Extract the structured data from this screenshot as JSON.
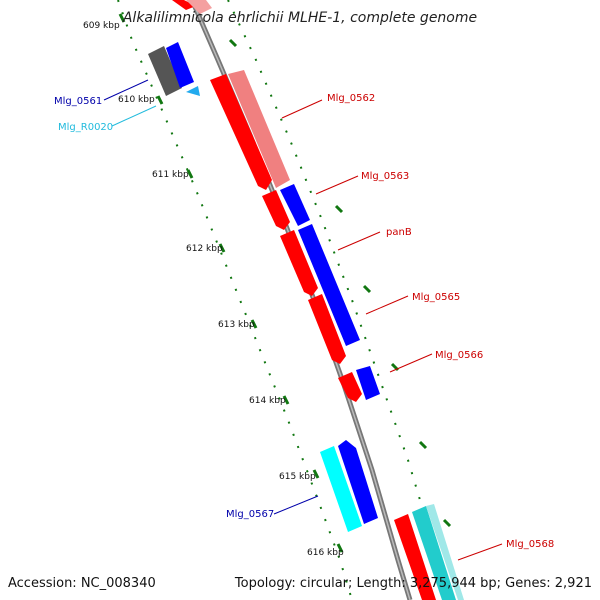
{
  "title": "Alkalilimnicola ehrlichii MLHE-1, complete genome",
  "footer": {
    "accession": "Accession: NC_008340",
    "topology": "Topology: circular; Length: 3,275,944 bp; Genes: 2,921"
  },
  "colors": {
    "forward_cds": "#ff0000",
    "forward_cds_light": "#f08080",
    "reverse_cds": "#0000ff",
    "rna": "#00ffff",
    "other": "#555555",
    "backbone": "#888888",
    "tick": "#117711",
    "label_red": "#cc0000",
    "label_blue": "#0000aa",
    "label_cyan": "#22bbdd"
  },
  "ticks": [
    {
      "label": "609 kbp"
    },
    {
      "label": "610 kbp"
    },
    {
      "label": "611 kbp"
    },
    {
      "label": "612 kbp"
    },
    {
      "label": "613 kbp"
    },
    {
      "label": "614 kbp"
    },
    {
      "label": "615 kbp"
    },
    {
      "label": "616 kbp"
    }
  ],
  "gene_labels": [
    {
      "text": "Mlg_0561",
      "color": "#0000aa"
    },
    {
      "text": "Mlg_R0020",
      "color": "#22bbdd"
    },
    {
      "text": "Mlg_0562",
      "color": "#cc0000"
    },
    {
      "text": "Mlg_0563",
      "color": "#cc0000"
    },
    {
      "text": "panB",
      "color": "#cc0000"
    },
    {
      "text": "Mlg_0565",
      "color": "#cc0000"
    },
    {
      "text": "Mlg_0566",
      "color": "#cc0000"
    },
    {
      "text": "Mlg_0567",
      "color": "#0000aa"
    },
    {
      "text": "Mlg_0568",
      "color": "#cc0000"
    }
  ]
}
